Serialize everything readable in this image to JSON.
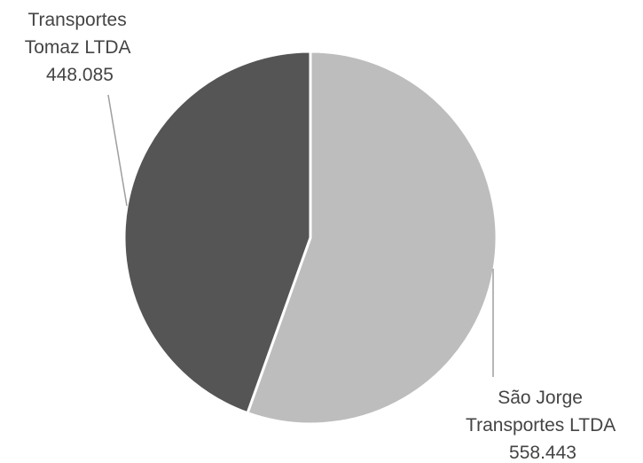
{
  "chart_data": {
    "type": "pie",
    "slices": [
      {
        "label_lines": [
          "São Jorge",
          "Transportes LTDA"
        ],
        "value_label": "558.443",
        "value": 558443,
        "color": "#bdbdbd"
      },
      {
        "label_lines": [
          "Transportes",
          "Tomaz LTDA"
        ],
        "value_label": "448.085",
        "value": 448085,
        "color": "#555555"
      }
    ],
    "start_angle": "12 o'clock",
    "direction": "clockwise",
    "slice_border_color": "#ffffff",
    "leader_line_color": "#9e9e9e",
    "label_color": "#444444"
  }
}
